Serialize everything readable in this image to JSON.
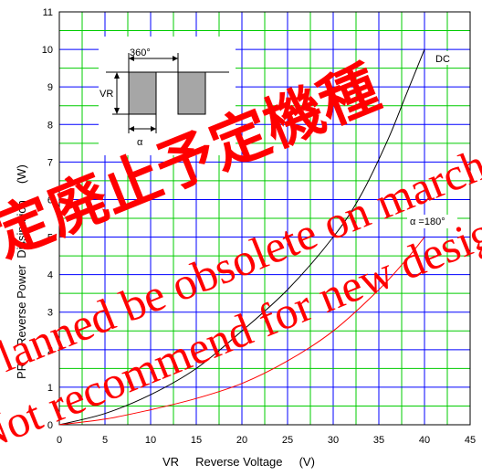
{
  "chart_data": {
    "type": "line",
    "title": "",
    "xlabel": "VR     Reverse Voltage     (V)",
    "ylabel": "PR     Reverse Power  Dissipation     (W)",
    "xlim": [
      0,
      45
    ],
    "ylim": [
      0,
      11
    ],
    "x_ticks": [
      "0",
      "5",
      "10",
      "15",
      "20",
      "25",
      "30",
      "35",
      "40",
      "45"
    ],
    "y_ticks": [
      "0",
      "1",
      "2",
      "3",
      "4",
      "5",
      "6",
      "7",
      "8",
      "9",
      "10",
      "11"
    ],
    "grid": true,
    "major_grid_color": "#0000ff",
    "minor_grid_color": "#00cc00",
    "series": [
      {
        "name": "DC",
        "color": "#000000",
        "x": [
          0,
          5,
          10,
          15,
          20,
          25,
          30,
          33,
          36,
          38,
          40
        ],
        "y": [
          0,
          0.3,
          0.8,
          1.5,
          2.5,
          3.6,
          5.0,
          6.1,
          7.6,
          8.8,
          10.0
        ]
      },
      {
        "name": "α =180°",
        "color": "#ff0000",
        "x": [
          0,
          5,
          10,
          15,
          20,
          25,
          30,
          35,
          38,
          40
        ],
        "y": [
          0,
          0.15,
          0.4,
          0.7,
          1.1,
          1.7,
          2.5,
          3.6,
          4.4,
          5.0
        ]
      }
    ],
    "inset": {
      "angle_label": "360°",
      "voltage_label": "VR",
      "alpha_label": "α"
    }
  },
  "watermark": {
    "cjk_text": "予定廃止予定機種",
    "line1": "Planned be obsolete on march.",
    "line2": "Not recommend for new design."
  }
}
